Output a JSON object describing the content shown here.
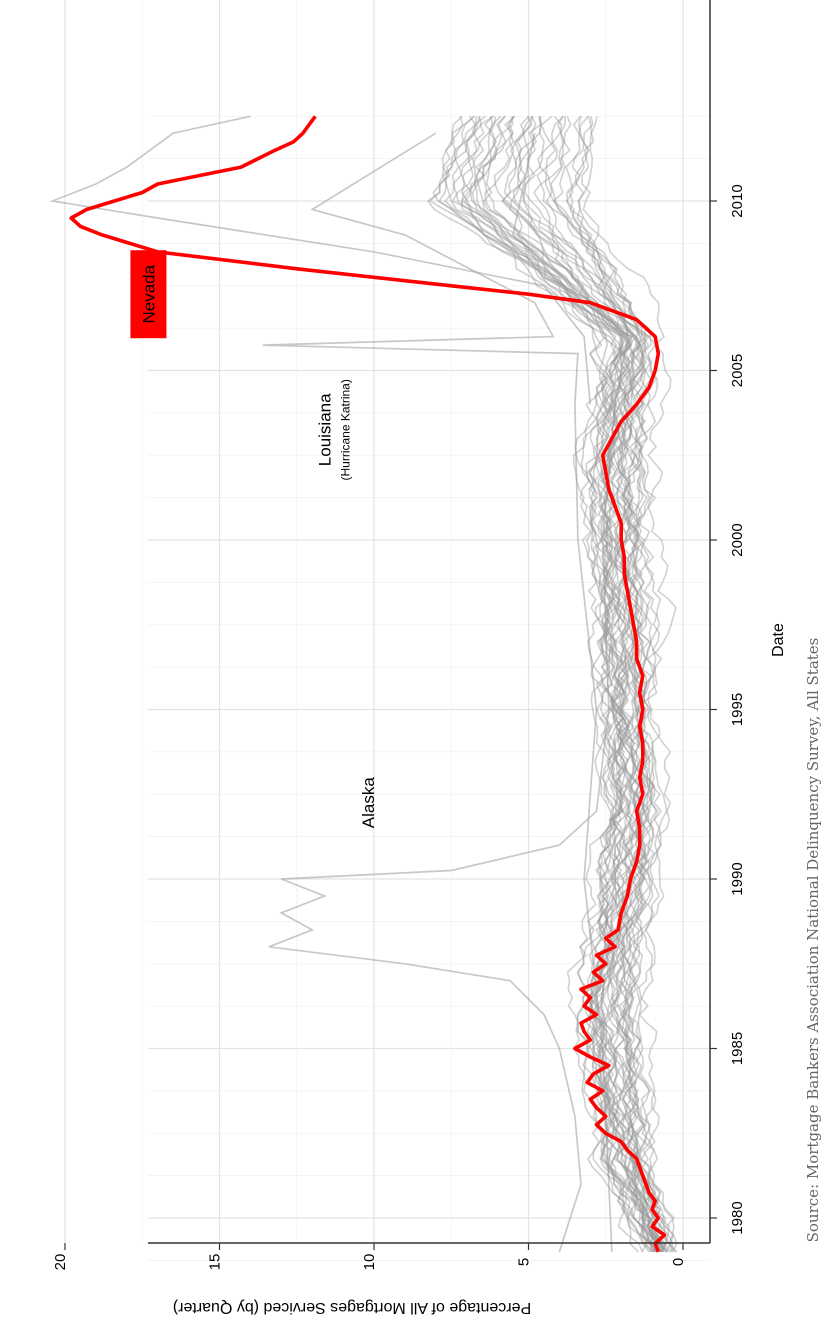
{
  "chart_data": {
    "type": "line",
    "title": "",
    "xlabel": "Date",
    "ylabel": "Percentage of All Mortgages Serviced (by Quarter)",
    "x_ticks": [
      1980,
      1985,
      1990,
      1995,
      2000,
      2005,
      2010
    ],
    "y_ticks": [
      0,
      5,
      10,
      15,
      20
    ],
    "xlim": [
      1978.6,
      2013.4
    ],
    "ylim": [
      -0.8,
      21.3
    ],
    "grid": true,
    "highlight_color": "#ff0000",
    "background_series_color": "#9a9a9a",
    "highlight": {
      "name": "Nevada",
      "label_bg": "#ff0000",
      "x": [
        1979.0,
        1979.25,
        1979.5,
        1979.75,
        1980.0,
        1980.25,
        1980.5,
        1980.75,
        1981.0,
        1981.25,
        1981.5,
        1981.75,
        1982.0,
        1982.25,
        1982.5,
        1982.75,
        1983.0,
        1983.25,
        1983.5,
        1983.75,
        1984.0,
        1984.25,
        1984.5,
        1984.75,
        1985.0,
        1985.25,
        1985.5,
        1985.75,
        1986.0,
        1986.25,
        1986.5,
        1986.75,
        1987.0,
        1987.25,
        1987.5,
        1987.75,
        1988.0,
        1988.25,
        1988.5,
        1989.0,
        1989.5,
        1990.0,
        1990.5,
        1991.0,
        1991.5,
        1992.0,
        1992.5,
        1993.0,
        1993.5,
        1994.0,
        1994.5,
        1995.0,
        1995.5,
        1996.0,
        1996.5,
        1997.0,
        1997.5,
        1998.0,
        1998.5,
        1999.0,
        1999.5,
        2000.0,
        2000.5,
        2001.0,
        2001.5,
        2002.0,
        2002.5,
        2003.0,
        2003.5,
        2004.0,
        2004.5,
        2005.0,
        2005.5,
        2006.0,
        2006.5,
        2007.0,
        2007.25,
        2007.5,
        2008.0,
        2008.5,
        2009.0,
        2009.25,
        2009.5,
        2009.75,
        2010.0,
        2010.25,
        2010.5,
        2011.0,
        2011.5,
        2011.75,
        2012.0,
        2012.25,
        2012.5
      ],
      "y": [
        0.8,
        0.9,
        0.6,
        1.0,
        0.8,
        1.0,
        0.9,
        1.1,
        1.2,
        1.3,
        1.4,
        1.5,
        1.8,
        2.0,
        2.5,
        2.8,
        2.5,
        2.8,
        3.0,
        2.6,
        3.1,
        2.9,
        2.4,
        3.0,
        3.5,
        3.0,
        3.2,
        3.3,
        2.8,
        3.2,
        3.0,
        3.3,
        2.6,
        2.9,
        2.5,
        2.8,
        2.2,
        2.5,
        2.1,
        2.0,
        1.8,
        1.7,
        1.5,
        1.4,
        1.4,
        1.5,
        1.3,
        1.4,
        1.3,
        1.3,
        1.4,
        1.3,
        1.4,
        1.3,
        1.5,
        1.5,
        1.6,
        1.7,
        1.8,
        1.9,
        1.9,
        2.0,
        2.0,
        2.2,
        2.4,
        2.5,
        2.6,
        2.3,
        2.0,
        1.5,
        1.1,
        0.9,
        0.8,
        0.9,
        1.5,
        3.0,
        5.0,
        7.5,
        12.5,
        17.0,
        18.8,
        19.5,
        19.8,
        19.3,
        18.4,
        17.5,
        17.0,
        14.3,
        13.2,
        12.6,
        12.3,
        12.1,
        11.9
      ]
    },
    "annotations": [
      {
        "text": "Nevada",
        "x": 2007.25,
        "y": 17.3,
        "style": "highlight"
      },
      {
        "text": "Louisiana",
        "x": 2003.25,
        "y": 11.4,
        "style": "normal"
      },
      {
        "text": "(Hurricane Katrina)",
        "x": 2003.25,
        "y": 10.8,
        "style": "small"
      },
      {
        "text": "Alaska",
        "x": 1992.25,
        "y": 10.0,
        "style": "normal"
      }
    ],
    "source": "Source: Mortgage Bankers Association National Delinquency Survey, All States"
  }
}
